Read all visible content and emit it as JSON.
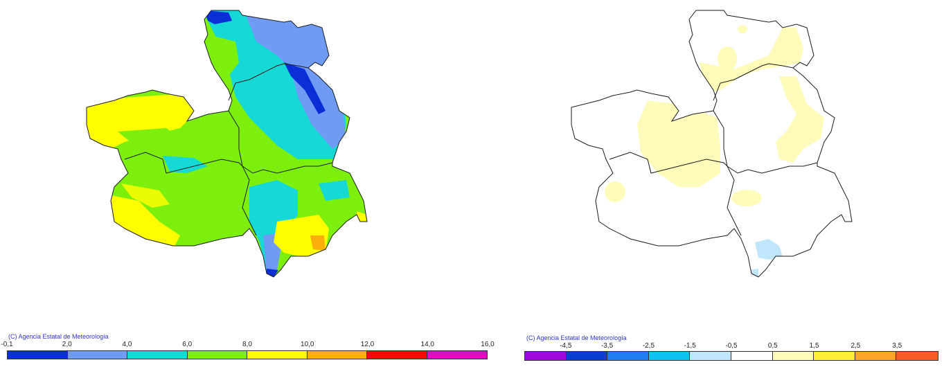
{
  "maps": {
    "left": {
      "name": "absolute-value-map",
      "copyright": "(C) Agencia Estatal de Meteorología",
      "legend": {
        "ticks": [
          "-0,1",
          "2,0",
          "4,0",
          "6,0",
          "8,0",
          "10,0",
          "12,0",
          "14,0",
          "16,0"
        ],
        "colors": [
          "#0a2fd6",
          "#6f9bf5",
          "#16d9d6",
          "#7cf00c",
          "#fefe00",
          "#fcae0a",
          "#fc0505",
          "#e10bbf"
        ]
      }
    },
    "right": {
      "name": "anomaly-map",
      "copyright": "(C) Agencia Estatal de Meteorología",
      "legend": {
        "ticks": [
          "-4,5",
          "-3,5",
          "-2,5",
          "-1,5",
          "-0,5",
          "0,5",
          "1,5",
          "2,5",
          "3,5"
        ],
        "colors": [
          "#a009dc",
          "#0a3ed0",
          "#1f7cf2",
          "#0cc3f4",
          "#bfe6fb",
          "#ffffff",
          "#fffbbb",
          "#fcee36",
          "#fba628",
          "#f85c28"
        ]
      }
    }
  },
  "chart_data": [
    {
      "type": "heatmap",
      "title": "",
      "region": "Castilla-La Mancha",
      "legend_ticks": [
        -0.1,
        2.0,
        4.0,
        6.0,
        8.0,
        10.0,
        12.0,
        14.0,
        16.0
      ],
      "legend_colors": [
        "#0a2fd6",
        "#6f9bf5",
        "#16d9d6",
        "#7cf00c",
        "#fefe00",
        "#fcae0a",
        "#fc0505",
        "#e10bbf"
      ],
      "dominant_classes": {
        "northeast (Guadalajara/Cuenca)": "2,0-6,0",
        "west and south (Toledo/Ciudad Real)": "6,0-10,0",
        "southeast corner": "10,0-12,0 small patch"
      },
      "copyright": "(C) Agencia Estatal de Meteorología"
    },
    {
      "type": "heatmap",
      "title": "",
      "region": "Castilla-La Mancha",
      "legend_ticks": [
        -4.5,
        -3.5,
        -2.5,
        -1.5,
        -0.5,
        0.5,
        1.5,
        2.5,
        3.5
      ],
      "legend_colors": [
        "#a009dc",
        "#0a3ed0",
        "#1f7cf2",
        "#0cc3f4",
        "#bfe6fb",
        "#ffffff",
        "#fffbbb",
        "#fcee36",
        "#fba628",
        "#f85c28"
      ],
      "dominant_classes": {
        "most of region": "-0,5 to 0,5",
        "central / northeast patches": "0,5 to 1,5",
        "southern Albacete patch": "-1,5 to -0,5"
      },
      "copyright": "(C) Agencia Estatal de Meteorología"
    }
  ]
}
